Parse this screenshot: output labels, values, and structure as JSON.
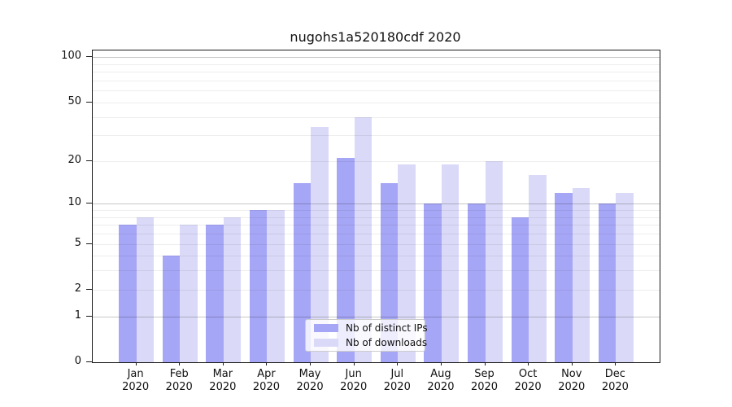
{
  "chart_data": {
    "type": "bar",
    "title": "nugohs1a520180cdf 2020",
    "categories": [
      "Jan",
      "Feb",
      "Mar",
      "Apr",
      "May",
      "Jun",
      "Jul",
      "Aug",
      "Sep",
      "Oct",
      "Nov",
      "Dec"
    ],
    "year": "2020",
    "series": [
      {
        "name": "Nb of distinct IPs",
        "color": "#a6a6f6",
        "values": [
          7,
          4,
          7,
          9,
          14,
          21,
          14,
          10,
          10,
          8,
          12,
          10
        ]
      },
      {
        "name": "Nb of downloads",
        "color": "#dadaf8",
        "values": [
          8,
          7,
          8,
          9,
          34,
          40,
          19,
          19,
          20,
          16,
          13,
          12
        ]
      }
    ],
    "yscale": "log1p",
    "ylim": [
      0,
      111
    ],
    "yticks": [
      100,
      50,
      20,
      10,
      5,
      2,
      1,
      0
    ],
    "major_gridlines": [
      1,
      10,
      100
    ],
    "minor_gridlines": [
      2,
      3,
      4,
      5,
      6,
      7,
      8,
      9,
      20,
      30,
      40,
      50,
      60,
      70,
      80,
      90
    ],
    "grid": true,
    "legend_position": "lower center",
    "bar_width_fraction": 0.4
  }
}
